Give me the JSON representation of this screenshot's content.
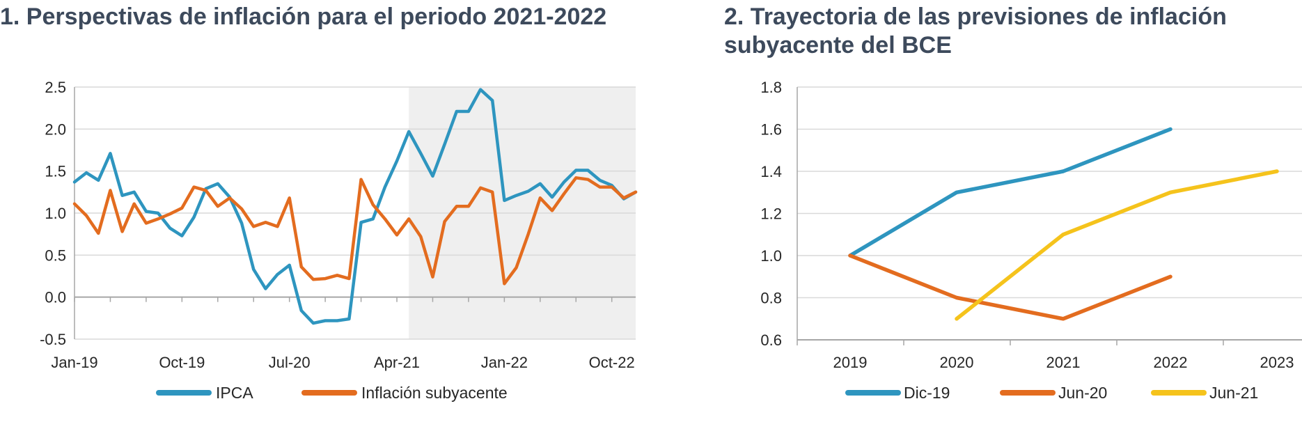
{
  "colors": {
    "blue": "#2e95bf",
    "orange": "#e36c1f",
    "yellow": "#f5c31c",
    "grid": "#d9d9d9",
    "axis": "#a6a6a6",
    "shade": "#efefef"
  },
  "chart_data": [
    {
      "type": "line",
      "title": "1. Perspectivas de inflación para el periodo 2021-2022",
      "x_tick_labels": [
        "Jan-19",
        "Oct-19",
        "Jul-20",
        "Apr-21",
        "Jan-22",
        "Oct-22"
      ],
      "x_tick_months": [
        0,
        9,
        18,
        27,
        36,
        45
      ],
      "ylim": [
        -0.5,
        2.5
      ],
      "yticks": [
        -0.5,
        0.0,
        0.5,
        1.0,
        1.5,
        2.0,
        2.5
      ],
      "ytick_labels": [
        "-0.5",
        "0.0",
        "0.5",
        "1.0",
        "1.5",
        "2.0",
        "2.5"
      ],
      "shaded_from_month": 28,
      "grid": true,
      "legend": "bottom",
      "series": [
        {
          "name": "IPCA",
          "color_key": "blue",
          "values": [
            1.37,
            1.48,
            1.39,
            1.71,
            1.21,
            1.25,
            1.02,
            1.0,
            0.82,
            0.73,
            0.95,
            1.29,
            1.35,
            1.19,
            0.88,
            0.33,
            0.1,
            0.27,
            0.38,
            -0.16,
            -0.31,
            -0.28,
            -0.28,
            -0.26,
            0.89,
            0.93,
            1.31,
            1.62,
            1.97,
            1.71,
            1.44,
            1.82,
            2.21,
            2.21,
            2.47,
            2.34,
            1.15,
            1.21,
            1.26,
            1.35,
            1.19,
            1.37,
            1.51,
            1.51,
            1.39,
            1.33,
            1.17,
            1.25
          ]
        },
        {
          "name": "Inflación subyacente",
          "color_key": "orange",
          "values": [
            1.11,
            0.97,
            0.76,
            1.27,
            0.78,
            1.11,
            0.88,
            0.93,
            0.99,
            1.06,
            1.31,
            1.27,
            1.08,
            1.18,
            1.05,
            0.84,
            0.89,
            0.84,
            1.18,
            0.36,
            0.21,
            0.22,
            0.26,
            0.22,
            1.4,
            1.1,
            0.93,
            0.74,
            0.93,
            0.72,
            0.24,
            0.9,
            1.08,
            1.08,
            1.3,
            1.25,
            0.16,
            0.35,
            0.75,
            1.18,
            1.03,
            1.23,
            1.42,
            1.4,
            1.31,
            1.31,
            1.18,
            1.25
          ]
        }
      ]
    },
    {
      "type": "line",
      "title": "2. Trayectoria de las previsiones de inflación subyacente del BCE",
      "x": [
        "2019",
        "2020",
        "2021",
        "2022",
        "2023"
      ],
      "ylim": [
        0.6,
        1.8
      ],
      "yticks": [
        0.6,
        0.8,
        1.0,
        1.2,
        1.4,
        1.6,
        1.8
      ],
      "ytick_labels": [
        "0.6",
        "0.8",
        "1.0",
        "1.2",
        "1.4",
        "1.6",
        "1.8"
      ],
      "grid": true,
      "legend": "bottom",
      "series": [
        {
          "name": "Dic-19",
          "color_key": "blue",
          "values": [
            1.0,
            1.3,
            1.4,
            1.6,
            null
          ]
        },
        {
          "name": "Jun-20",
          "color_key": "orange",
          "values": [
            1.0,
            0.8,
            0.7,
            0.9,
            null
          ]
        },
        {
          "name": "Jun-21",
          "color_key": "yellow",
          "values": [
            null,
            0.7,
            1.1,
            1.3,
            1.4
          ]
        }
      ]
    }
  ]
}
